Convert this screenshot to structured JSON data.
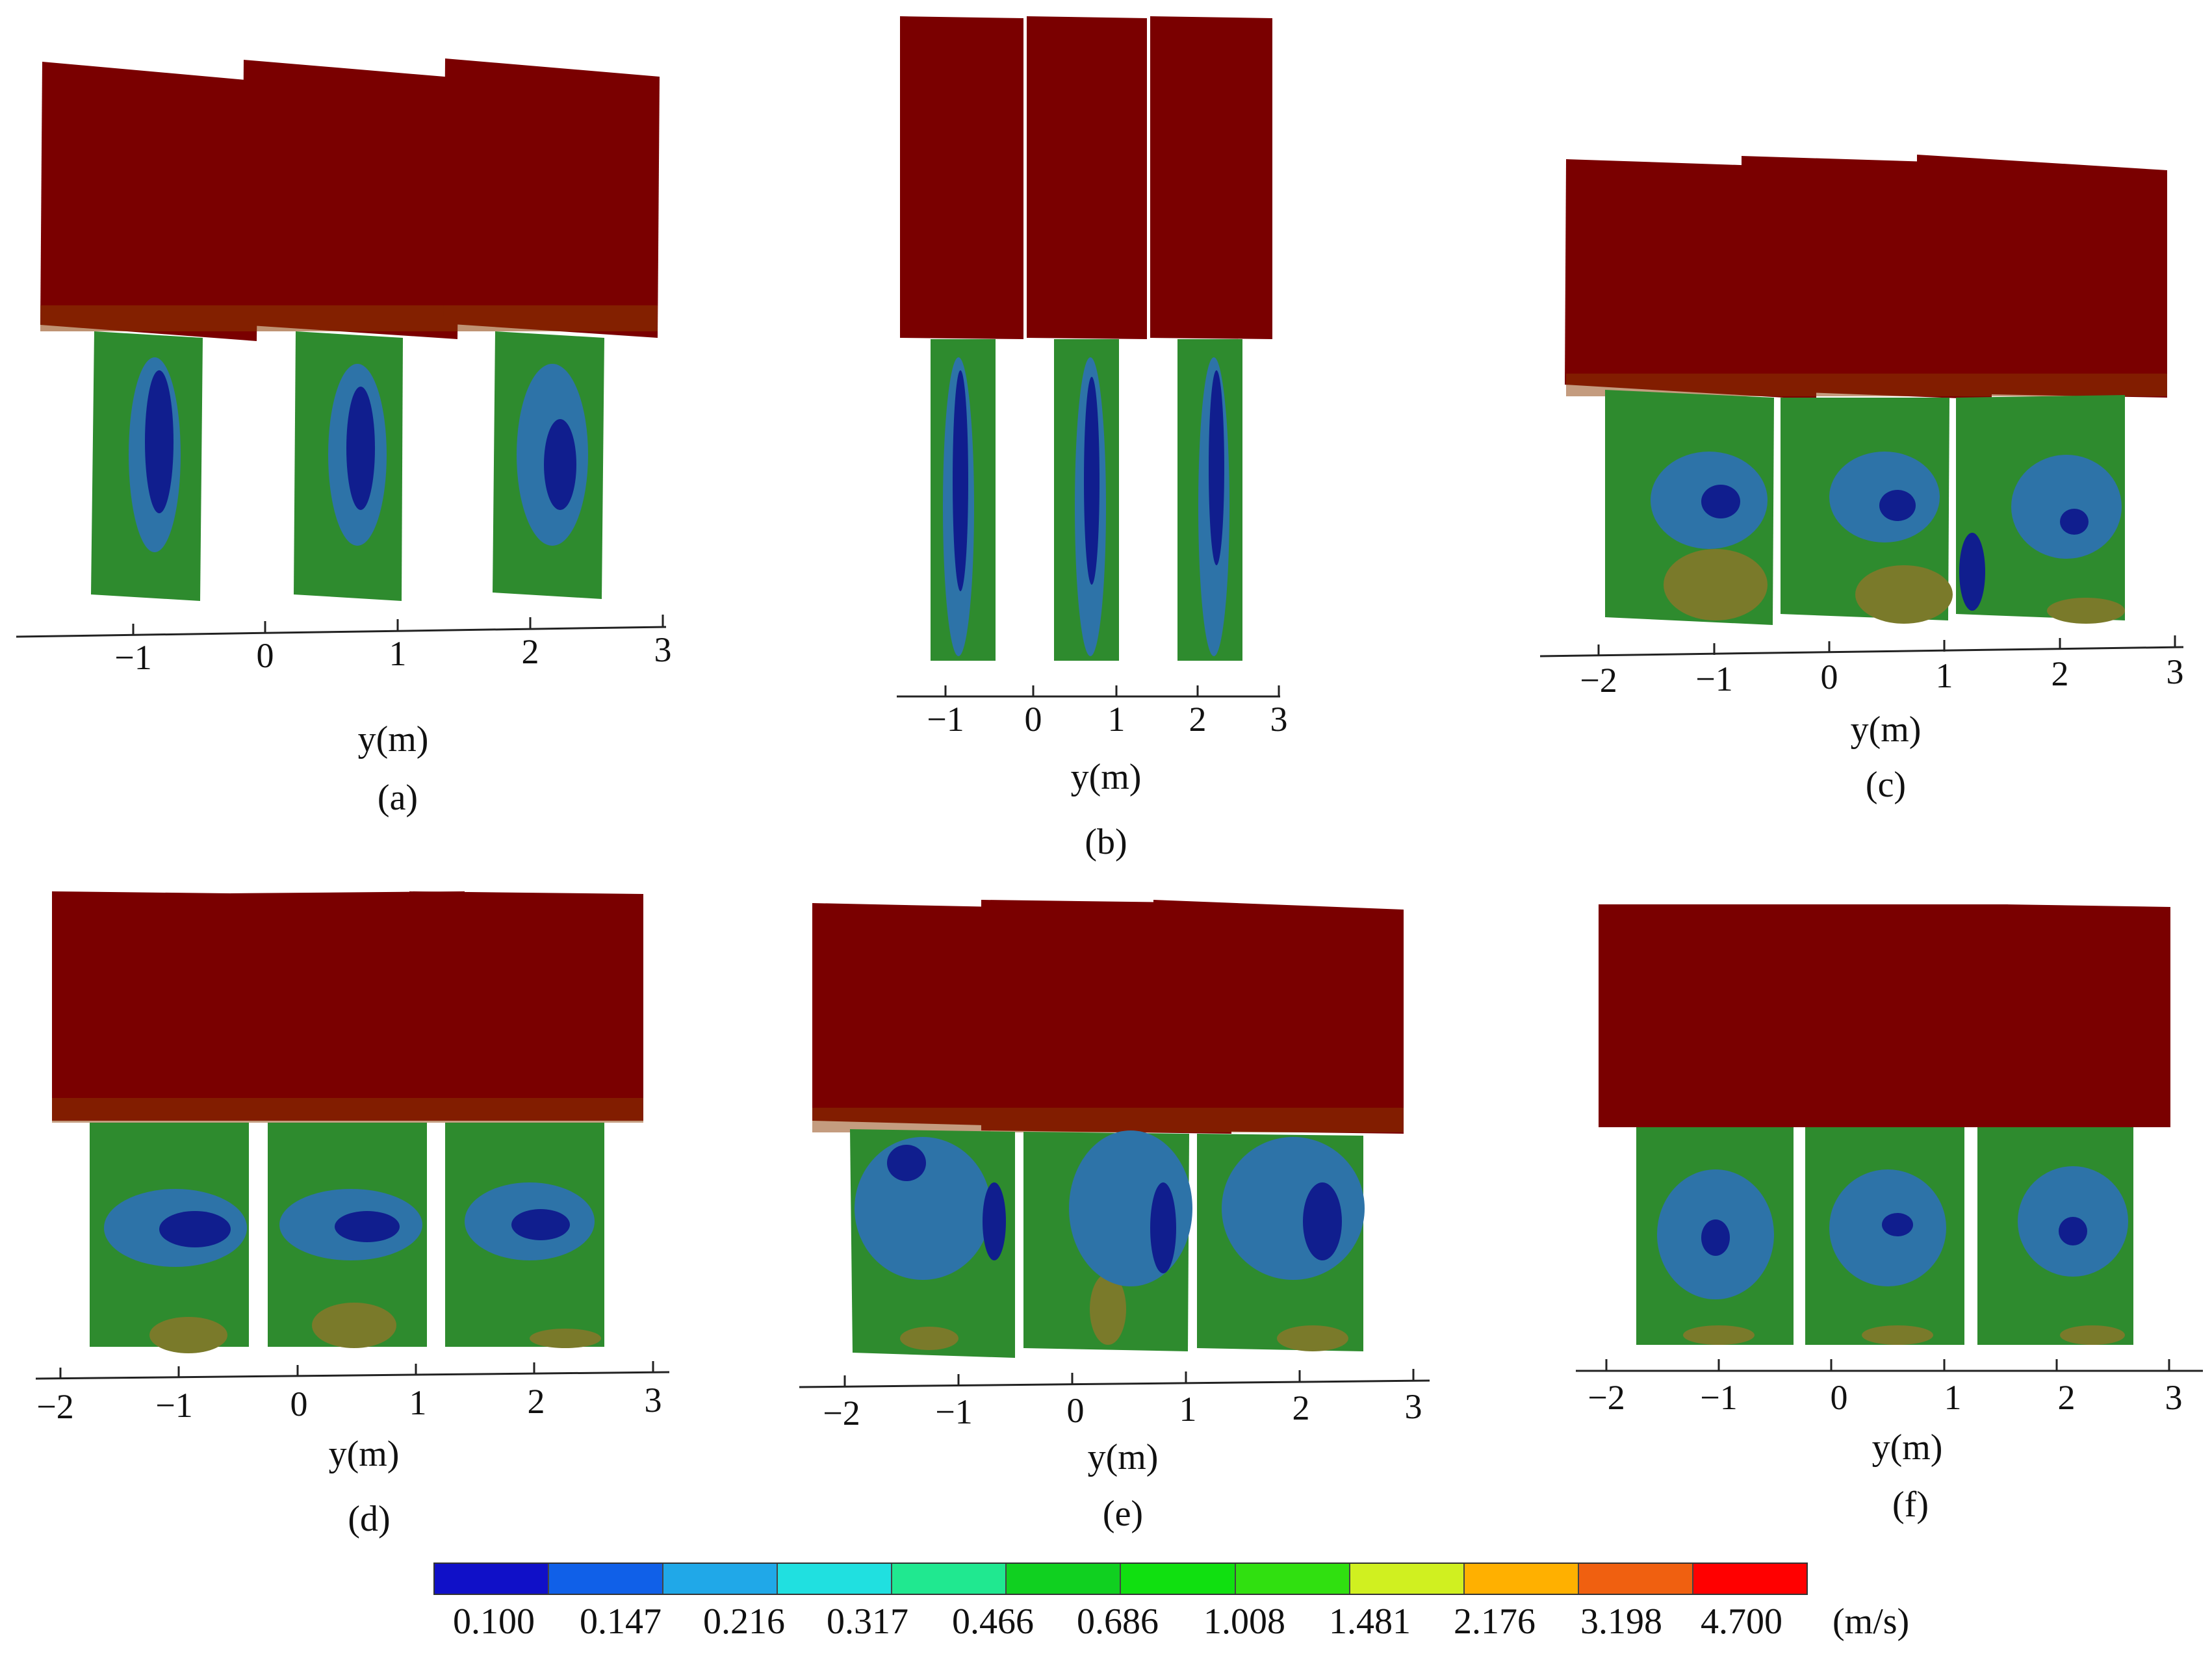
{
  "panels": [
    {
      "id": "a",
      "caption": "(a)",
      "xlabel": "y(m)",
      "ticks": [
        "−1",
        "0",
        "1",
        "2",
        "3"
      ]
    },
    {
      "id": "b",
      "caption": "(b)",
      "xlabel": "y(m)",
      "ticks": [
        "−1",
        "0",
        "1",
        "2",
        "3"
      ]
    },
    {
      "id": "c",
      "caption": "(c)",
      "xlabel": "y(m)",
      "ticks": [
        "−2",
        "−1",
        "0",
        "1",
        "2",
        "3"
      ]
    },
    {
      "id": "d",
      "caption": "(d)",
      "xlabel": "y(m)",
      "ticks": [
        "−2",
        "−1",
        "0",
        "1",
        "2",
        "3"
      ]
    },
    {
      "id": "e",
      "caption": "(e)",
      "xlabel": "y(m)",
      "ticks": [
        "−2",
        "−1",
        "0",
        "1",
        "2",
        "3"
      ]
    },
    {
      "id": "f",
      "caption": "(f)",
      "xlabel": "y(m)",
      "ticks": [
        "−2",
        "−1",
        "0",
        "1",
        "2",
        "3"
      ]
    }
  ],
  "legend": {
    "unit": "(m/s)",
    "levels": [
      "0.100",
      "0.147",
      "0.216",
      "0.317",
      "0.466",
      "0.686",
      "1.008",
      "1.481",
      "2.176",
      "3.198",
      "4.700"
    ],
    "colors": [
      "#1010c8",
      "#1060e8",
      "#20a8e8",
      "#20e0e0",
      "#20e890",
      "#10d020",
      "#10e010",
      "#30e010",
      "#d0f020",
      "#ffb000",
      "#f06010",
      "#ff0000"
    ]
  },
  "colors": {
    "upper_block": "#7a0000",
    "upper_edge": "#8a3a00",
    "lower_green": "#2e8b2e",
    "low_velocity": "#101e8e",
    "mid_velocity": "#2d73a8",
    "olive": "#7a7a2a"
  }
}
